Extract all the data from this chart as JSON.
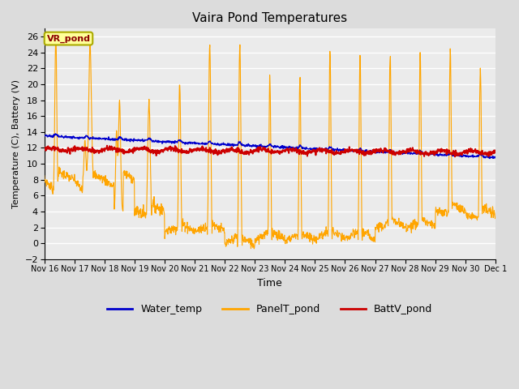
{
  "title": "Vaira Pond Temperatures",
  "xlabel": "Time",
  "ylabel": "Temperature (C), Battery (V)",
  "ylim": [
    -2,
    27
  ],
  "yticks": [
    -2,
    0,
    2,
    4,
    6,
    8,
    10,
    12,
    14,
    16,
    18,
    20,
    22,
    24,
    26
  ],
  "bg_color": "#dcdcdc",
  "plot_bg_color": "#ebebeb",
  "annotation_text": "VR_pond",
  "annotation_bg": "#ffff99",
  "annotation_border": "#aaaa00",
  "water_temp_color": "#0000cc",
  "panel_temp_color": "#ffa500",
  "batt_color": "#cc0000",
  "legend_labels": [
    "Water_temp",
    "PanelT_pond",
    "BattV_pond"
  ],
  "xtick_labels": [
    "Nov 16",
    "Nov 17",
    "Nov 18",
    "Nov 19",
    "Nov 20",
    "Nov 21",
    "Nov 22",
    "Nov 23",
    "Nov 24",
    "Nov 25",
    "Nov 26",
    "Nov 27",
    "Nov 28",
    "Nov 29",
    "Nov 30",
    "Dec 1"
  ],
  "num_days": 15,
  "points_per_day": 96
}
